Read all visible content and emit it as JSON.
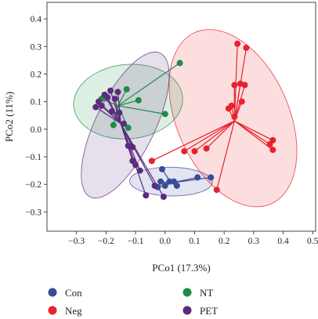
{
  "chart_data": {
    "type": "scatter",
    "title": "",
    "xlabel": "PCo1 (17.3%)",
    "ylabel": "PCo2 (11%)",
    "xlim": [
      -0.4,
      0.51
    ],
    "ylim": [
      -0.37,
      0.46
    ],
    "xticks": [
      -0.3,
      -0.2,
      -0.1,
      0.0,
      0.1,
      0.2,
      0.3,
      0.4,
      0.5
    ],
    "xtick_labels": [
      "−0.3",
      "−0.2",
      "−0.1",
      "0.0",
      "0.1",
      "0.2",
      "0.3",
      "0.4",
      "0.5"
    ],
    "yticks": [
      -0.3,
      -0.2,
      -0.1,
      0.0,
      0.1,
      0.2,
      0.3,
      0.4
    ],
    "ytick_labels": [
      "−0.3",
      "−0.2",
      "−0.1",
      "0.0",
      "0.1",
      "0.2",
      "0.3",
      "0.4"
    ],
    "grid": false,
    "legend_position": "bottom",
    "series": [
      {
        "name": "Con",
        "color": "#3a4b9a",
        "centroid": [
          0.02,
          -0.195
        ],
        "points": [
          [
            -0.01,
            -0.145
          ],
          [
            0.11,
            -0.175
          ],
          [
            0.155,
            -0.175
          ],
          [
            -0.015,
            -0.19
          ],
          [
            0.015,
            -0.19
          ],
          [
            0.03,
            -0.19
          ],
          [
            0.0,
            -0.205
          ],
          [
            0.04,
            -0.205
          ],
          [
            -0.025,
            -0.21
          ]
        ],
        "ellipse": {
          "cx": 0.02,
          "cy": -0.19,
          "rx": 0.14,
          "ry": 0.052,
          "angle_deg": 1
        }
      },
      {
        "name": "Neg",
        "color": "#e8212b",
        "centroid": [
          0.235,
          0.03
        ],
        "points": [
          [
            0.245,
            0.31
          ],
          [
            0.275,
            0.295
          ],
          [
            0.255,
            0.165
          ],
          [
            0.235,
            0.16
          ],
          [
            0.27,
            0.16
          ],
          [
            0.26,
            0.1
          ],
          [
            0.225,
            0.085
          ],
          [
            0.215,
            0.075
          ],
          [
            0.235,
            0.045
          ],
          [
            0.365,
            -0.04
          ],
          [
            0.355,
            -0.055
          ],
          [
            0.365,
            -0.075
          ],
          [
            0.14,
            -0.07
          ],
          [
            0.1,
            -0.08
          ],
          [
            0.065,
            -0.08
          ],
          [
            -0.045,
            -0.115
          ],
          [
            0.175,
            -0.22
          ]
        ],
        "ellipse": {
          "cx": 0.23,
          "cy": 0.04,
          "rx": 0.19,
          "ry": 0.34,
          "angle_deg": -24
        }
      },
      {
        "name": "NT",
        "color": "#1e8c45",
        "centroid": [
          -0.16,
          0.085
        ],
        "points": [
          [
            0.05,
            0.24
          ],
          [
            -0.13,
            0.145
          ],
          [
            -0.09,
            0.105
          ],
          [
            -0.215,
            0.11
          ],
          [
            0.0,
            0.055
          ],
          [
            -0.175,
            0.015
          ],
          [
            -0.125,
            0.005
          ]
        ],
        "ellipse": {
          "cx": -0.125,
          "cy": 0.1,
          "rx": 0.185,
          "ry": 0.135,
          "angle_deg": -5
        }
      },
      {
        "name": "PET",
        "color": "#5c2a7e",
        "centroid": [
          -0.15,
          0.02
        ],
        "points": [
          [
            -0.185,
            0.14
          ],
          [
            -0.16,
            0.135
          ],
          [
            -0.205,
            0.125
          ],
          [
            -0.195,
            0.115
          ],
          [
            -0.17,
            0.11
          ],
          [
            -0.225,
            0.1
          ],
          [
            -0.215,
            0.085
          ],
          [
            -0.235,
            0.08
          ],
          [
            -0.18,
            0.065
          ],
          [
            -0.155,
            0.06
          ],
          [
            -0.14,
            0.02
          ],
          [
            -0.125,
            -0.06
          ],
          [
            -0.11,
            -0.065
          ],
          [
            -0.11,
            -0.115
          ],
          [
            -0.1,
            -0.13
          ],
          [
            -0.085,
            -0.15
          ],
          [
            -0.035,
            -0.205
          ],
          [
            -0.065,
            -0.24
          ],
          [
            -0.005,
            -0.245
          ]
        ],
        "ellipse": {
          "cx": -0.135,
          "cy": 0.015,
          "rx": 0.1,
          "ry": 0.29,
          "angle_deg": 26
        }
      }
    ]
  }
}
